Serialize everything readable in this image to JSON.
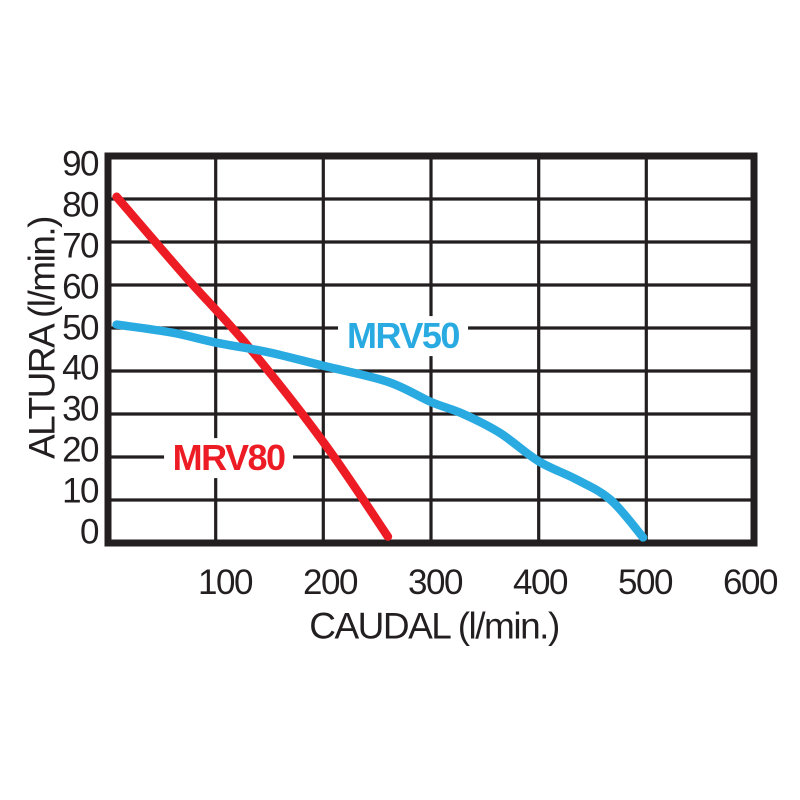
{
  "page": {
    "background": "#ffffff",
    "text_color": "#231F20"
  },
  "chart_data": {
    "type": "line",
    "title": "",
    "xlabel": "CAUDAL (l/min.)",
    "ylabel": "ALTURA (l/min.)",
    "xlim": [
      0,
      600
    ],
    "ylim": [
      0,
      90
    ],
    "xticks": [
      100,
      200,
      300,
      400,
      500,
      600
    ],
    "yticks": [
      0,
      10,
      20,
      30,
      40,
      50,
      60,
      70,
      80,
      90
    ],
    "grid": true,
    "legend_position": "inline-annotations",
    "colors": {
      "grid": "#231F20",
      "border": "#231F20",
      "mrv80": "#ED1C24",
      "mrv50": "#29ABE2"
    },
    "series": [
      {
        "name": "MRV80",
        "color": "#ED1C24",
        "label": "MRV80",
        "label_pos": [
          112,
          19.8
        ],
        "points": [
          [
            8,
            80.5
          ],
          [
            70,
            62.5
          ],
          [
            130,
            45.8
          ],
          [
            200,
            23.5
          ],
          [
            260,
            1.5
          ]
        ]
      },
      {
        "name": "MRV50",
        "color": "#29ABE2",
        "label": "MRV50",
        "label_pos": [
          274,
          48.1
        ],
        "points": [
          [
            8,
            50.8
          ],
          [
            60,
            48.9
          ],
          [
            100,
            46.6
          ],
          [
            150,
            44.3
          ],
          [
            200,
            41.2
          ],
          [
            260,
            37.5
          ],
          [
            300,
            32.8
          ],
          [
            330,
            30.0
          ],
          [
            364,
            25.6
          ],
          [
            400,
            19.0
          ],
          [
            435,
            14.8
          ],
          [
            467,
            10.0
          ],
          [
            497,
            1.3
          ]
        ]
      }
    ]
  }
}
